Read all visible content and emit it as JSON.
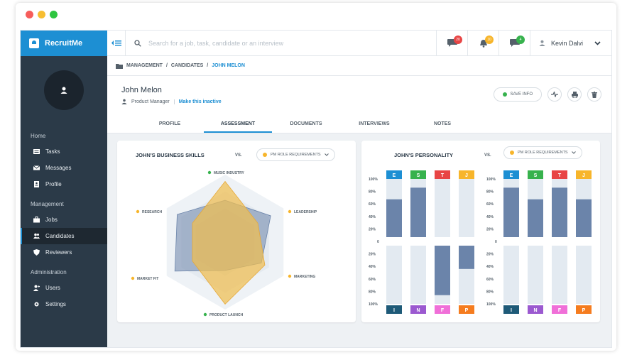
{
  "window_dots": [
    "#f65d5b",
    "#f7be31",
    "#2ec540"
  ],
  "brand": {
    "name": "RecruitMe"
  },
  "sidebar": {
    "groups": [
      {
        "title": "Home",
        "items": [
          {
            "label": "Tasks",
            "icon": "tasks-icon"
          },
          {
            "label": "Messages",
            "icon": "envelope-icon"
          },
          {
            "label": "Profile",
            "icon": "profile-icon"
          }
        ]
      },
      {
        "title": "Management",
        "items": [
          {
            "label": "Jobs",
            "icon": "briefcase-icon"
          },
          {
            "label": "Candidates",
            "icon": "people-icon"
          },
          {
            "label": "Reviewers",
            "icon": "shield-icon"
          }
        ]
      },
      {
        "title": "Administration",
        "items": [
          {
            "label": "Users",
            "icon": "user-plus-icon"
          },
          {
            "label": "Settings",
            "icon": "gear-icon"
          }
        ]
      }
    ],
    "active_item": "Candidates"
  },
  "topbar": {
    "search_placeholder": "Search for a job, task, candidate or an interview",
    "badges": [
      {
        "icon": "chat-icon",
        "count": "20",
        "color": "#e84545"
      },
      {
        "icon": "bell-icon",
        "count": "10",
        "color": "#f7b52b"
      },
      {
        "icon": "message-icon",
        "count": "4",
        "color": "#37b24d"
      }
    ],
    "user_name": "Kevin Dalvi"
  },
  "breadcrumb": {
    "root": "MANAGEMENT",
    "sep": "/",
    "mid": "CANDIDATES",
    "current": "JOHN MELON"
  },
  "profile": {
    "name": "John Melon",
    "role": "Product Manager",
    "action_link": "Make this inactive",
    "save_label": "SAVE INFO"
  },
  "tabs": [
    "PROFILE",
    "ASSESSMENT",
    "DOCUMENTS",
    "INTERVIEWS",
    "NOTES"
  ],
  "active_tab": "ASSESSMENT",
  "skills_card": {
    "title": "JOHN'S BUSINESS SKILLS",
    "vs": "VS.",
    "compare_label": "PM ROLE REQUIREMENTS",
    "axes": [
      {
        "label": "MUSIC INDUSTRY",
        "dot": "#37b24d"
      },
      {
        "label": "LEADERSHIP",
        "dot": "#f7b52b"
      },
      {
        "label": "MARKETING",
        "dot": "#f7b52b"
      },
      {
        "label": "PRODUCT LAUNCH",
        "dot": "#37b24d"
      },
      {
        "label": "MARKET FIT",
        "dot": "#f7b52b"
      },
      {
        "label": "RESEARCH",
        "dot": "#f7b52b"
      }
    ],
    "candidate_values": [
      0.62,
      0.78,
      0.62,
      0.42,
      0.86,
      0.82
    ],
    "requirement_values": [
      0.9,
      0.56,
      0.68,
      0.92,
      0.56,
      0.56
    ]
  },
  "personality_card": {
    "title": "JOHN'S PERSONALITY",
    "vs": "VS.",
    "compare_label": "PM ROLE REQUIREMENTS",
    "axis_labels_top": [
      "100%",
      "80%",
      "60%",
      "40%",
      "20%"
    ],
    "axis_zero": "0",
    "axis_labels_bottom": [
      "20%",
      "40%",
      "60%",
      "80%",
      "100%"
    ],
    "top_letters": [
      {
        "letter": "E",
        "color": "#1d8fd3"
      },
      {
        "letter": "S",
        "color": "#37b24d"
      },
      {
        "letter": "T",
        "color": "#e84545"
      },
      {
        "letter": "J",
        "color": "#f7b52b"
      }
    ],
    "bottom_letters": [
      {
        "letter": "I",
        "color": "#1e5a78"
      },
      {
        "letter": "N",
        "color": "#9b59d0"
      },
      {
        "letter": "F",
        "color": "#f06fd8"
      },
      {
        "letter": "P",
        "color": "#f57c1f"
      }
    ],
    "candidate": [
      {
        "up": 0.65,
        "down": 0
      },
      {
        "up": 0.85,
        "down": 0
      },
      {
        "up": 0,
        "down": 0.85
      },
      {
        "up": 0,
        "down": 0.4
      }
    ],
    "requirements": [
      {
        "up": 0.85,
        "down": 0
      },
      {
        "up": 0.65,
        "down": 0
      },
      {
        "up": 0.85,
        "down": 0
      },
      {
        "up": 0.65,
        "down": 0
      }
    ]
  }
}
